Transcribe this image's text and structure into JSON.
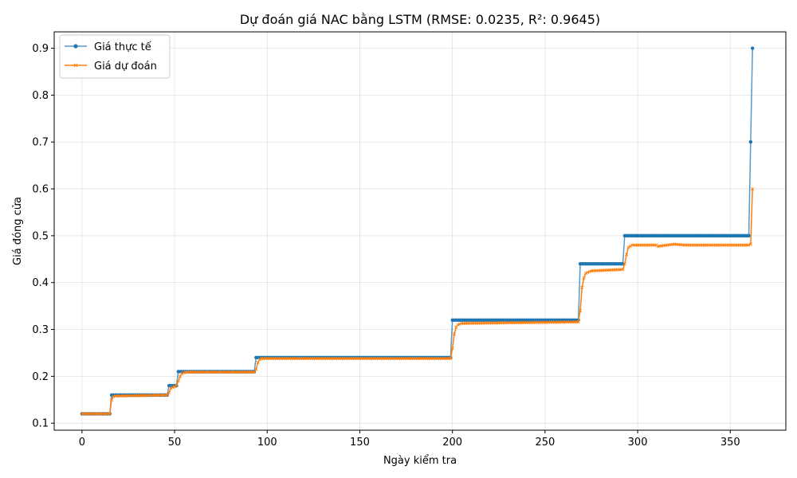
{
  "chart_data": {
    "type": "line",
    "title": "Dự đoán giá NAC bằng LSTM (RMSE: 0.0235, R²: 0.9645)",
    "xlabel": "Ngày kiểm tra",
    "ylabel": "Giá đóng cửa",
    "xlim": [
      -15,
      380
    ],
    "ylim": [
      0.085,
      0.935
    ],
    "xticks": [
      0,
      50,
      100,
      150,
      200,
      250,
      300,
      350
    ],
    "yticks": [
      0.1,
      0.2,
      0.3,
      0.4,
      0.5,
      0.6,
      0.7,
      0.8,
      0.9
    ],
    "grid": true,
    "legend_position": "top-left",
    "series": [
      {
        "name": "Giá thực tế",
        "color": "#1f77b4",
        "marker": "circle",
        "segments": [
          {
            "x_start": 0,
            "x_end": 15,
            "y": 0.12
          },
          {
            "x_start": 16,
            "x_end": 46,
            "y": 0.16
          },
          {
            "x_start": 47,
            "x_end": 51,
            "y": 0.18
          },
          {
            "x_start": 52,
            "x_end": 93,
            "y": 0.21
          },
          {
            "x_start": 94,
            "x_end": 199,
            "y": 0.24
          },
          {
            "x_start": 200,
            "x_end": 268,
            "y": 0.32
          },
          {
            "x_start": 269,
            "x_end": 292,
            "y": 0.44
          },
          {
            "x_start": 293,
            "x_end": 360,
            "y": 0.5
          },
          {
            "x_start": 361,
            "x_end": 361,
            "y": 0.7
          },
          {
            "x_start": 362,
            "x_end": 362,
            "y": 0.9
          }
        ]
      },
      {
        "name": "Giá dự đoán",
        "color": "#ff7f0e",
        "marker": "x",
        "points": [
          [
            0,
            0.12
          ],
          [
            15,
            0.12
          ],
          [
            16,
            0.15
          ],
          [
            17,
            0.157
          ],
          [
            18,
            0.158
          ],
          [
            46,
            0.16
          ],
          [
            47,
            0.165
          ],
          [
            48,
            0.175
          ],
          [
            50,
            0.178
          ],
          [
            51,
            0.18
          ],
          [
            52,
            0.19
          ],
          [
            53,
            0.2
          ],
          [
            54,
            0.206
          ],
          [
            56,
            0.209
          ],
          [
            93,
            0.209
          ],
          [
            94,
            0.215
          ],
          [
            95,
            0.23
          ],
          [
            96,
            0.236
          ],
          [
            97,
            0.238
          ],
          [
            199,
            0.238
          ],
          [
            200,
            0.26
          ],
          [
            201,
            0.29
          ],
          [
            202,
            0.305
          ],
          [
            203,
            0.31
          ],
          [
            205,
            0.313
          ],
          [
            268,
            0.316
          ],
          [
            269,
            0.34
          ],
          [
            270,
            0.39
          ],
          [
            271,
            0.41
          ],
          [
            272,
            0.42
          ],
          [
            275,
            0.425
          ],
          [
            292,
            0.428
          ],
          [
            293,
            0.44
          ],
          [
            294,
            0.46
          ],
          [
            295,
            0.475
          ],
          [
            297,
            0.48
          ],
          [
            310,
            0.48
          ],
          [
            311,
            0.477
          ],
          [
            312,
            0.478
          ],
          [
            320,
            0.482
          ],
          [
            325,
            0.48
          ],
          [
            360,
            0.48
          ],
          [
            361,
            0.482
          ],
          [
            362,
            0.6
          ]
        ]
      }
    ]
  }
}
